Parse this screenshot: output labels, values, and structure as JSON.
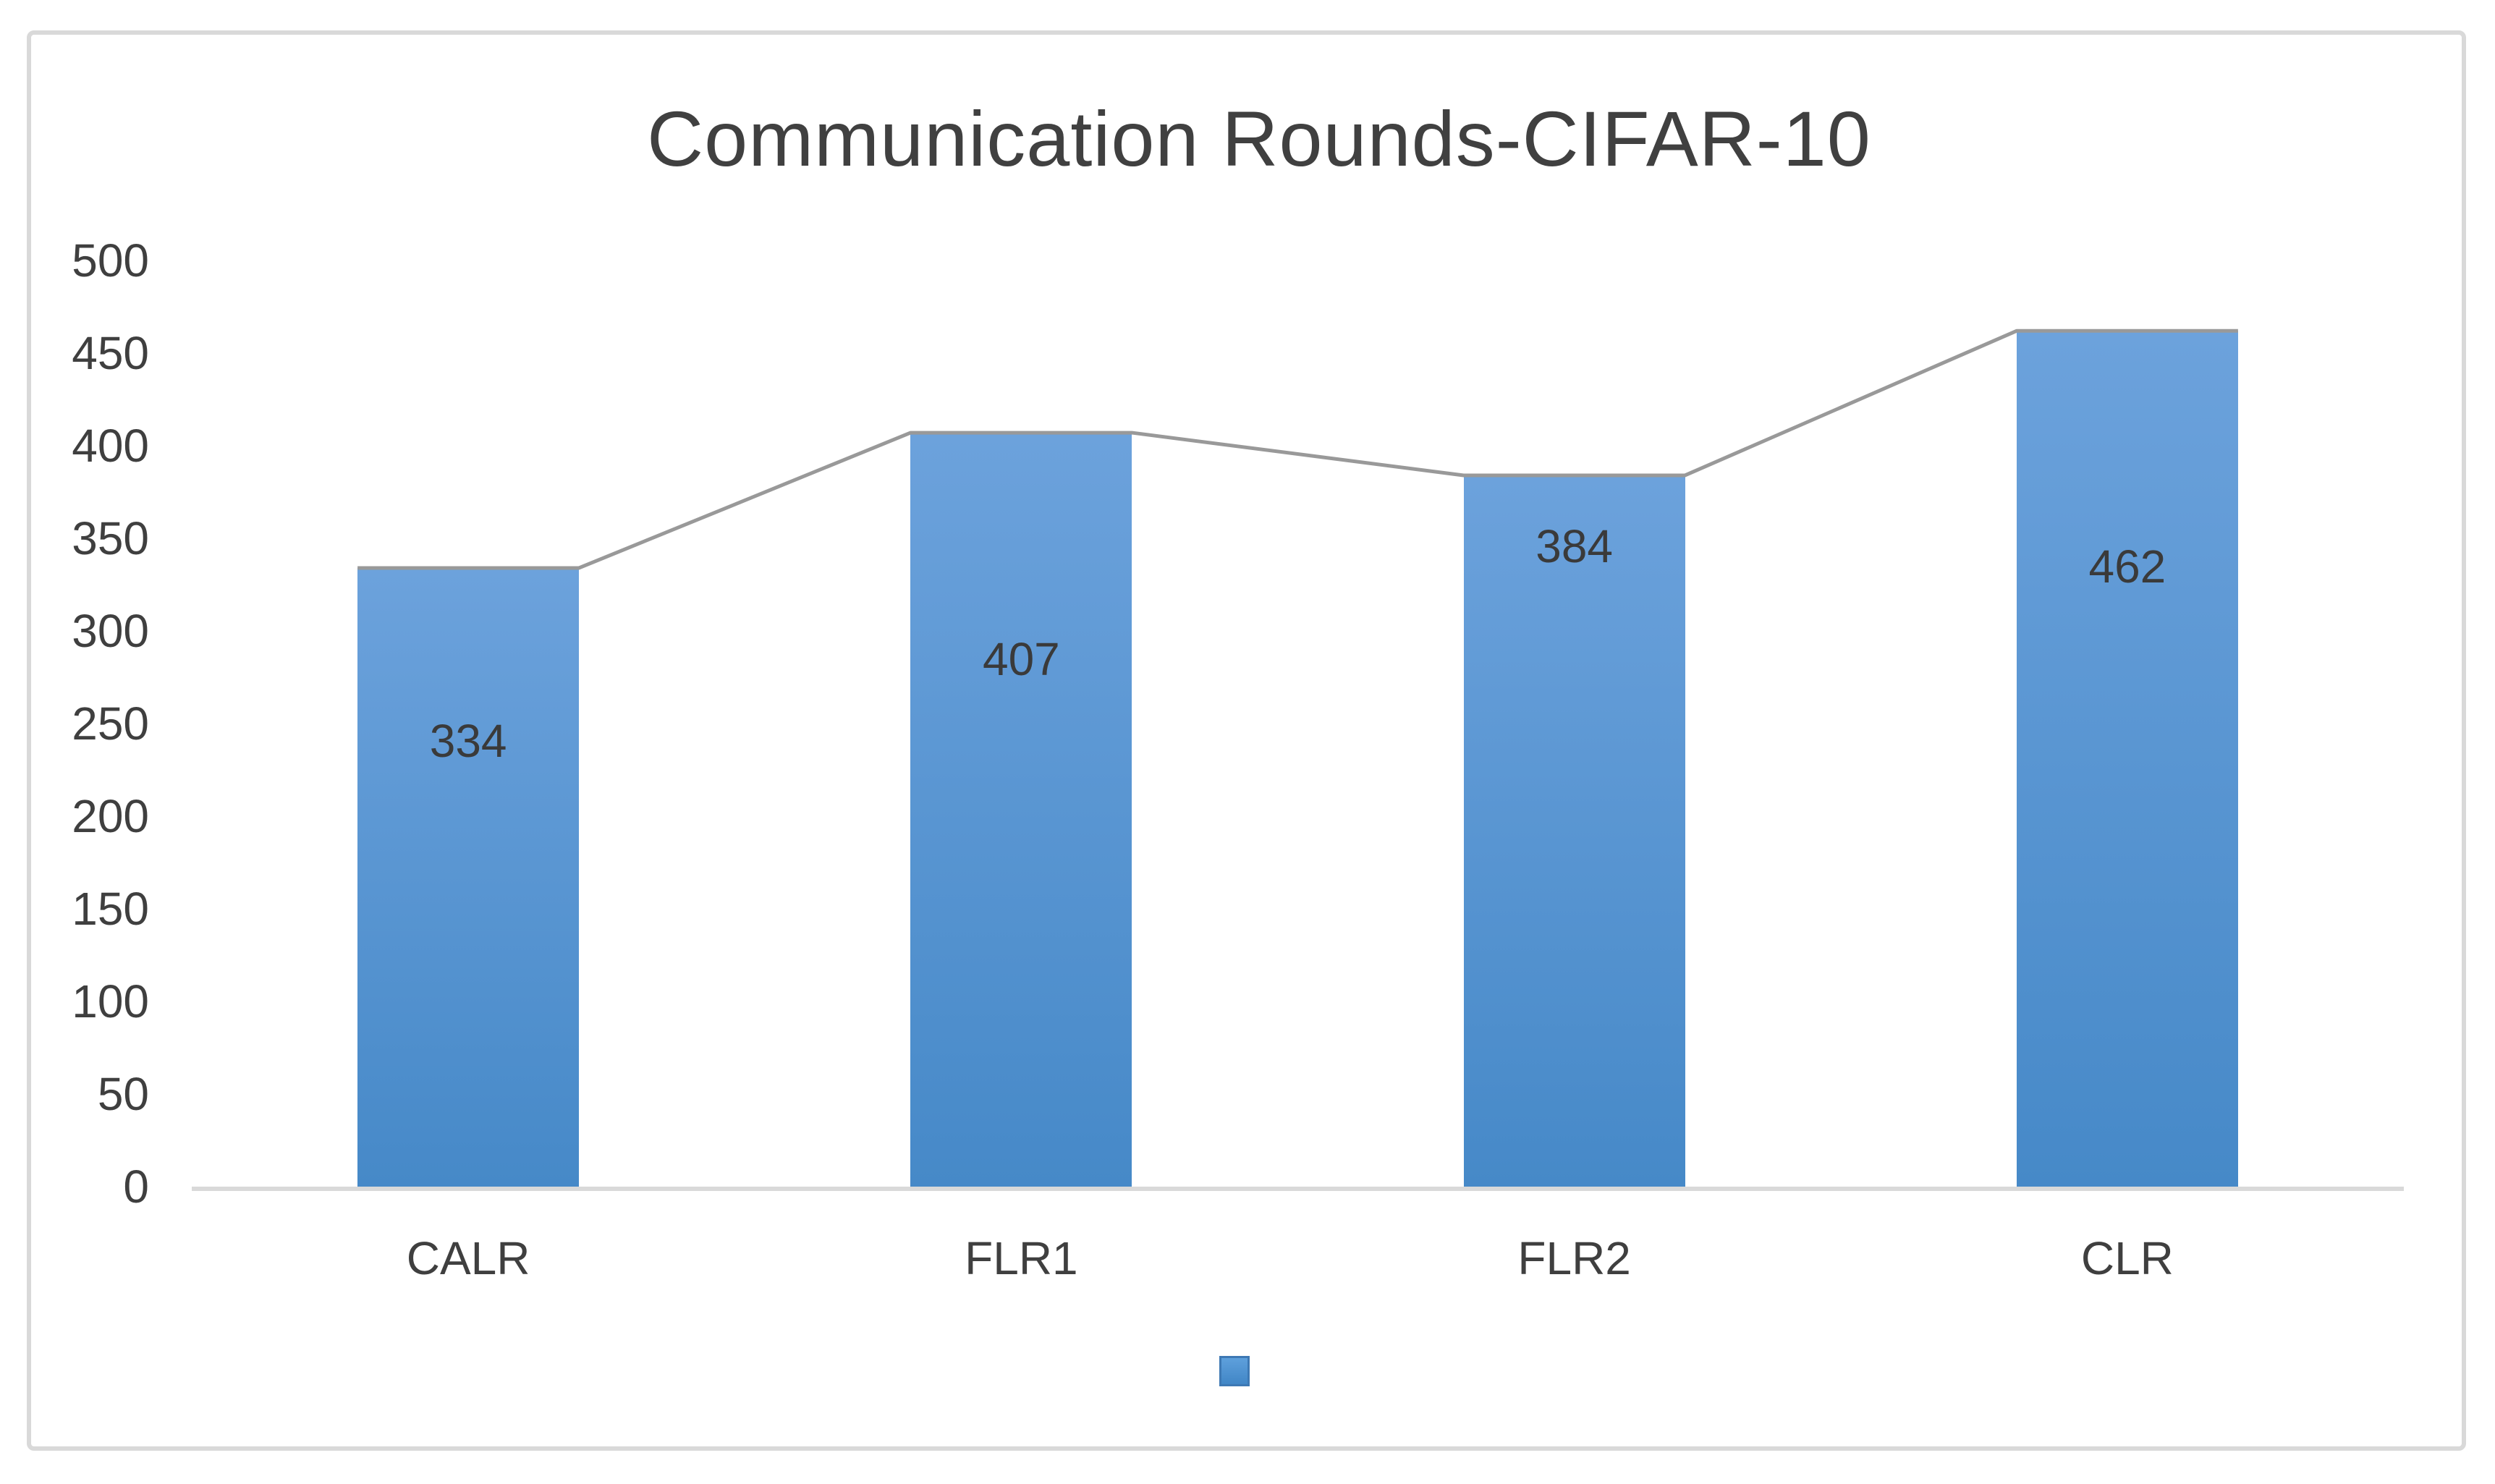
{
  "chart_data": {
    "type": "bar",
    "title": "Communication Rounds-CIFAR-10",
    "categories": [
      "CALR",
      "FLR1",
      "FLR2",
      "CLR"
    ],
    "values": [
      334,
      407,
      384,
      462
    ],
    "data_labels": [
      "334",
      "407",
      "384",
      "462"
    ],
    "xlabel": "",
    "ylabel": "",
    "ylim": [
      0,
      500
    ],
    "yticks": [
      0,
      50,
      100,
      150,
      200,
      250,
      300,
      350,
      400,
      450,
      500
    ],
    "grid": false,
    "overlay_line_connecting_bar_tops": true,
    "legend": {
      "position": "bottom-center",
      "entries": [
        {
          "label": "",
          "marker": "blue-square"
        }
      ]
    },
    "colors": {
      "bar_gradient_top": "#6ca2dc",
      "bar_gradient_bottom": "#4689c8",
      "connector_line": "#999999",
      "axis_line": "#d9d9d9",
      "frame_border": "#d9d9d9",
      "text": "#3f3f3f",
      "title_text": "#404040",
      "background": "#ffffff",
      "legend_marker_fill": "#4e8cc9",
      "legend_marker_border": "#3e79b4"
    }
  }
}
